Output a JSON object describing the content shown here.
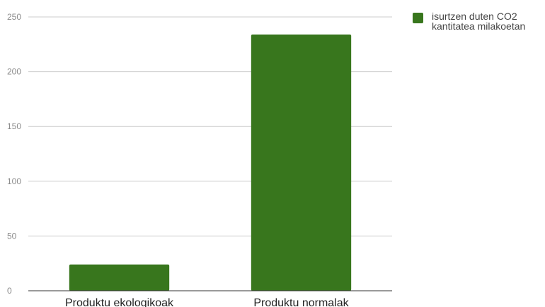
{
  "chart_data": {
    "type": "bar",
    "categories": [
      "Produktu ekologikoak",
      "Produktu normalak"
    ],
    "series": [
      {
        "name": "isurtzen duten CO2 kantitatea milakoetan",
        "values": [
          24,
          234
        ]
      }
    ],
    "ylim": [
      0,
      250
    ],
    "yticks": [
      0,
      50,
      100,
      150,
      200,
      250
    ],
    "grid": true,
    "legend_position": "top-right",
    "title": "",
    "xlabel": "",
    "ylabel": ""
  },
  "colors": {
    "bar": "#38761d",
    "grid": "#cccccc",
    "axis": "#333333"
  }
}
